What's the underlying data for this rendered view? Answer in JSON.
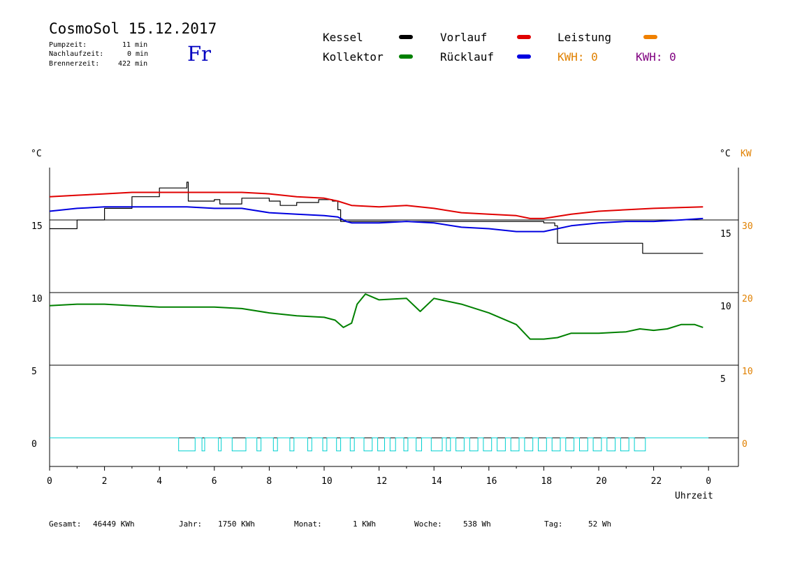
{
  "header": {
    "title": "CosmoSol 15.12.2017",
    "day": "Fr",
    "stats": [
      {
        "label": "Pumpzeit:",
        "value": "11 min"
      },
      {
        "label": "Nachlaufzeit:",
        "value": "0 min"
      },
      {
        "label": "Brennerzeit:",
        "value": "422 min"
      }
    ]
  },
  "legend": {
    "kessel": {
      "label": "Kessel",
      "color": "#000000"
    },
    "vorlauf": {
      "label": "Vorlauf",
      "color": "#e00000"
    },
    "leistung": {
      "label": "Leistung",
      "color": "#f08000"
    },
    "kollektor": {
      "label": "Kollektor",
      "color": "#008000"
    },
    "ruecklauf": {
      "label": "Rücklauf",
      "color": "#0000e0"
    },
    "kwh_orange": {
      "text": "KWH: 0",
      "color": "#e08000"
    },
    "kwh_purple": {
      "text": "KWH: 0",
      "color": "#800080"
    }
  },
  "footer": {
    "gesamt": {
      "label": "Gesamt:",
      "value": "46449 KWh"
    },
    "jahr": {
      "label": "Jahr:",
      "value": "1750 KWh"
    },
    "monat": {
      "label": "Monat:",
      "value": "1 KWh"
    },
    "woche": {
      "label": "Woche:",
      "value": "538 Wh"
    },
    "tag": {
      "label": "Tag:",
      "value": "52 Wh"
    }
  },
  "chart_data": {
    "type": "line",
    "left_unit": "°C",
    "right_unit_c": "°C",
    "right_unit_kw": "KW",
    "xlabel": "Uhrzeit",
    "x_ticks": [
      "0",
      "2",
      "4",
      "6",
      "8",
      "10",
      "12",
      "14",
      "16",
      "18",
      "20",
      "22",
      "0"
    ],
    "left_ticks": [
      "15",
      "10",
      "5",
      "0"
    ],
    "right_c_ticks": [
      "15",
      "10",
      "5"
    ],
    "right_kw_ticks": [
      "30",
      "20",
      "10",
      "0"
    ],
    "gridlines": [
      15,
      10,
      5,
      0
    ],
    "series": [
      {
        "name": "Kessel",
        "color": "#000000",
        "step": true,
        "points": [
          [
            0,
            14.4
          ],
          [
            1,
            15.0
          ],
          [
            2,
            15.8
          ],
          [
            3,
            16.6
          ],
          [
            4,
            17.2
          ],
          [
            5,
            17.6
          ],
          [
            5.05,
            16.3
          ],
          [
            6,
            16.4
          ],
          [
            6.2,
            16.1
          ],
          [
            7,
            16.5
          ],
          [
            8,
            16.3
          ],
          [
            8.4,
            16.0
          ],
          [
            9,
            16.2
          ],
          [
            9.8,
            16.4
          ],
          [
            10.3,
            16.3
          ],
          [
            10.5,
            15.7
          ],
          [
            10.6,
            14.9
          ],
          [
            11,
            14.9
          ],
          [
            12,
            14.9
          ],
          [
            13,
            14.9
          ],
          [
            14,
            14.9
          ],
          [
            15,
            14.9
          ],
          [
            16,
            14.9
          ],
          [
            17,
            14.9
          ],
          [
            18,
            14.8
          ],
          [
            18.4,
            14.6
          ],
          [
            18.5,
            13.4
          ],
          [
            20,
            13.4
          ],
          [
            21.5,
            13.4
          ],
          [
            21.6,
            12.7
          ],
          [
            23.8,
            12.7
          ]
        ]
      },
      {
        "name": "Vorlauf",
        "color": "#e00000",
        "step": false,
        "points": [
          [
            0,
            16.6
          ],
          [
            1,
            16.7
          ],
          [
            2,
            16.8
          ],
          [
            3,
            16.9
          ],
          [
            5,
            16.9
          ],
          [
            7,
            16.9
          ],
          [
            8,
            16.8
          ],
          [
            9,
            16.6
          ],
          [
            10,
            16.5
          ],
          [
            10.5,
            16.3
          ],
          [
            11,
            16.0
          ],
          [
            12,
            15.9
          ],
          [
            13,
            16.0
          ],
          [
            14,
            15.8
          ],
          [
            15,
            15.5
          ],
          [
            16,
            15.4
          ],
          [
            17,
            15.3
          ],
          [
            17.5,
            15.1
          ],
          [
            18,
            15.1
          ],
          [
            19,
            15.4
          ],
          [
            20,
            15.6
          ],
          [
            21,
            15.7
          ],
          [
            22,
            15.8
          ],
          [
            23.8,
            15.9
          ]
        ]
      },
      {
        "name": "Rücklauf",
        "color": "#0000e0",
        "step": false,
        "points": [
          [
            0,
            15.6
          ],
          [
            1,
            15.8
          ],
          [
            2,
            15.9
          ],
          [
            5,
            15.9
          ],
          [
            6,
            15.8
          ],
          [
            7,
            15.8
          ],
          [
            8,
            15.5
          ],
          [
            9,
            15.4
          ],
          [
            10,
            15.3
          ],
          [
            10.5,
            15.2
          ],
          [
            10.8,
            14.9
          ],
          [
            11,
            14.8
          ],
          [
            12,
            14.8
          ],
          [
            13,
            14.9
          ],
          [
            14,
            14.8
          ],
          [
            15,
            14.5
          ],
          [
            16,
            14.4
          ],
          [
            17,
            14.2
          ],
          [
            18,
            14.2
          ],
          [
            18.5,
            14.4
          ],
          [
            19,
            14.6
          ],
          [
            20,
            14.8
          ],
          [
            21,
            14.9
          ],
          [
            22,
            14.9
          ],
          [
            23,
            15.0
          ],
          [
            23.8,
            15.1
          ]
        ]
      },
      {
        "name": "Kollektor",
        "color": "#008000",
        "step": false,
        "points": [
          [
            0,
            9.1
          ],
          [
            1,
            9.2
          ],
          [
            2,
            9.2
          ],
          [
            3,
            9.1
          ],
          [
            4,
            9.0
          ],
          [
            5,
            9.0
          ],
          [
            6,
            9.0
          ],
          [
            7,
            8.9
          ],
          [
            8,
            8.6
          ],
          [
            9,
            8.4
          ],
          [
            10,
            8.3
          ],
          [
            10.4,
            8.1
          ],
          [
            10.7,
            7.6
          ],
          [
            11,
            7.9
          ],
          [
            11.2,
            9.2
          ],
          [
            11.5,
            9.9
          ],
          [
            12,
            9.5
          ],
          [
            13,
            9.6
          ],
          [
            13.5,
            8.7
          ],
          [
            14,
            9.6
          ],
          [
            15,
            9.2
          ],
          [
            16,
            8.6
          ],
          [
            17,
            7.8
          ],
          [
            17.5,
            6.8
          ],
          [
            18,
            6.8
          ],
          [
            18.5,
            6.9
          ],
          [
            19,
            7.2
          ],
          [
            20,
            7.2
          ],
          [
            21,
            7.3
          ],
          [
            21.5,
            7.5
          ],
          [
            22,
            7.4
          ],
          [
            22.5,
            7.5
          ],
          [
            23,
            7.8
          ],
          [
            23.5,
            7.8
          ],
          [
            23.8,
            7.6
          ]
        ]
      }
    ]
  }
}
